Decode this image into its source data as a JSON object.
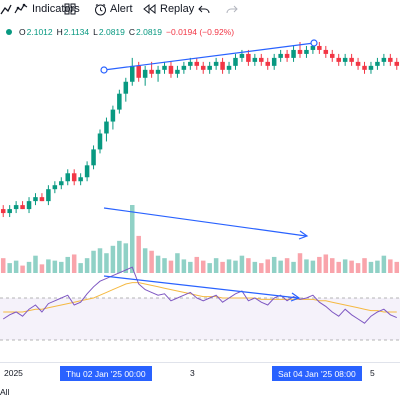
{
  "toolbar": {
    "indicators_label": "Indicators",
    "alert_label": "Alert",
    "replay_label": "Replay",
    "icons": [
      "chart-type-icon",
      "indicators-icon",
      "layout-grid-icon",
      "alert-clock-icon",
      "replay-icon",
      "undo-icon",
      "redo-icon"
    ]
  },
  "legend": {
    "open_key": "O",
    "open": "2.1012",
    "high_key": "H",
    "high": "2.1134",
    "low_key": "L",
    "low": "2.0819",
    "close_key": "C",
    "close": "2.0819",
    "change": "−0.0194 (−0.92%)"
  },
  "colors": {
    "up": "#089981",
    "down": "#f23645",
    "drawing": "#2962ff",
    "rsi_line": "#7e57c2",
    "rsi_ma": "#f5b942",
    "rsi_band": "#ede7f6"
  },
  "xaxis": {
    "year_label": "2025",
    "crosshair_left": "Thu 02 Jan '25   00:00",
    "mid_label": "3",
    "crosshair_right": "Sat 04 Jan '25   08:00",
    "right_label": "5"
  },
  "bottom": {
    "all_label": "All"
  },
  "chart_data": {
    "type": "candlestick",
    "candles": [
      [
        1.72,
        1.73,
        1.7,
        1.71
      ],
      [
        1.71,
        1.73,
        1.7,
        1.72
      ],
      [
        1.72,
        1.74,
        1.71,
        1.73
      ],
      [
        1.73,
        1.74,
        1.72,
        1.72
      ],
      [
        1.72,
        1.75,
        1.71,
        1.74
      ],
      [
        1.74,
        1.76,
        1.73,
        1.75
      ],
      [
        1.75,
        1.76,
        1.74,
        1.74
      ],
      [
        1.74,
        1.78,
        1.73,
        1.77
      ],
      [
        1.77,
        1.79,
        1.76,
        1.78
      ],
      [
        1.78,
        1.8,
        1.77,
        1.79
      ],
      [
        1.79,
        1.82,
        1.78,
        1.81
      ],
      [
        1.81,
        1.82,
        1.78,
        1.79
      ],
      [
        1.79,
        1.81,
        1.78,
        1.8
      ],
      [
        1.8,
        1.84,
        1.79,
        1.83
      ],
      [
        1.83,
        1.88,
        1.82,
        1.87
      ],
      [
        1.87,
        1.92,
        1.86,
        1.91
      ],
      [
        1.91,
        1.95,
        1.89,
        1.94
      ],
      [
        1.94,
        1.98,
        1.92,
        1.97
      ],
      [
        1.97,
        2.02,
        1.96,
        2.01
      ],
      [
        2.01,
        2.05,
        1.99,
        2.04
      ],
      [
        2.04,
        2.1,
        2.03,
        2.08
      ],
      [
        2.08,
        2.09,
        2.04,
        2.05
      ],
      [
        2.05,
        2.08,
        2.03,
        2.07
      ],
      [
        2.07,
        2.09,
        2.05,
        2.06
      ],
      [
        2.06,
        2.08,
        2.04,
        2.07
      ],
      [
        2.07,
        2.09,
        2.06,
        2.08
      ],
      [
        2.08,
        2.09,
        2.05,
        2.06
      ],
      [
        2.06,
        2.08,
        2.05,
        2.07
      ],
      [
        2.07,
        2.09,
        2.06,
        2.08
      ],
      [
        2.08,
        2.1,
        2.07,
        2.09
      ],
      [
        2.09,
        2.1,
        2.07,
        2.08
      ],
      [
        2.08,
        2.09,
        2.06,
        2.07
      ],
      [
        2.07,
        2.09,
        2.06,
        2.08
      ],
      [
        2.08,
        2.1,
        2.07,
        2.09
      ],
      [
        2.09,
        2.1,
        2.06,
        2.07
      ],
      [
        2.07,
        2.09,
        2.06,
        2.08
      ],
      [
        2.08,
        2.11,
        2.07,
        2.1
      ],
      [
        2.1,
        2.12,
        2.09,
        2.11
      ],
      [
        2.11,
        2.12,
        2.08,
        2.09
      ],
      [
        2.09,
        2.11,
        2.08,
        2.1
      ],
      [
        2.1,
        2.11,
        2.08,
        2.09
      ],
      [
        2.09,
        2.1,
        2.07,
        2.08
      ],
      [
        2.08,
        2.11,
        2.07,
        2.1
      ],
      [
        2.1,
        2.12,
        2.09,
        2.11
      ],
      [
        2.11,
        2.12,
        2.09,
        2.1
      ],
      [
        2.1,
        2.13,
        2.09,
        2.12
      ],
      [
        2.12,
        2.14,
        2.1,
        2.11
      ],
      [
        2.11,
        2.13,
        2.1,
        2.12
      ],
      [
        2.12,
        2.14,
        2.11,
        2.13
      ],
      [
        2.13,
        2.14,
        2.11,
        2.12
      ],
      [
        2.12,
        2.13,
        2.1,
        2.11
      ],
      [
        2.11,
        2.12,
        2.09,
        2.1
      ],
      [
        2.1,
        2.11,
        2.08,
        2.09
      ],
      [
        2.09,
        2.11,
        2.08,
        2.1
      ],
      [
        2.1,
        2.11,
        2.08,
        2.09
      ],
      [
        2.09,
        2.1,
        2.07,
        2.08
      ],
      [
        2.08,
        2.09,
        2.06,
        2.07
      ],
      [
        2.07,
        2.09,
        2.06,
        2.08
      ],
      [
        2.08,
        2.1,
        2.07,
        2.09
      ],
      [
        2.09,
        2.11,
        2.08,
        2.1
      ],
      [
        2.1,
        2.11,
        2.08,
        2.09
      ],
      [
        2.09,
        2.1,
        2.07,
        2.08
      ]
    ],
    "volume": [
      12,
      8,
      10,
      6,
      9,
      14,
      7,
      11,
      10,
      9,
      13,
      15,
      8,
      12,
      18,
      20,
      16,
      22,
      26,
      24,
      55,
      30,
      20,
      18,
      14,
      12,
      10,
      16,
      11,
      9,
      13,
      10,
      8,
      12,
      9,
      11,
      10,
      14,
      12,
      9,
      8,
      11,
      13,
      10,
      12,
      9,
      16,
      11,
      10,
      13,
      15,
      12,
      9,
      11,
      10,
      8,
      12,
      9,
      10,
      14,
      11,
      9
    ],
    "rsi": [
      45,
      48,
      50,
      47,
      52,
      55,
      50,
      56,
      58,
      60,
      62,
      55,
      57,
      63,
      68,
      72,
      74,
      76,
      78,
      80,
      82,
      70,
      66,
      64,
      62,
      63,
      58,
      60,
      62,
      64,
      60,
      58,
      60,
      62,
      57,
      60,
      63,
      65,
      58,
      60,
      57,
      55,
      60,
      62,
      58,
      61,
      59,
      60,
      62,
      57,
      54,
      50,
      47,
      52,
      48,
      45,
      42,
      47,
      50,
      52,
      48,
      46
    ],
    "rsi_ma": [
      50,
      50,
      50,
      50,
      51,
      52,
      52,
      53,
      54,
      55,
      56,
      57,
      58,
      59,
      60,
      62,
      64,
      66,
      68,
      70,
      71,
      71,
      70,
      69,
      68,
      67,
      66,
      65,
      64,
      63,
      62,
      61,
      61,
      61,
      60,
      60,
      60,
      60,
      60,
      60,
      59,
      59,
      59,
      59,
      59,
      59,
      59,
      59,
      59,
      58,
      58,
      57,
      56,
      55,
      54,
      53,
      52,
      51,
      51,
      50,
      50,
      50
    ]
  }
}
